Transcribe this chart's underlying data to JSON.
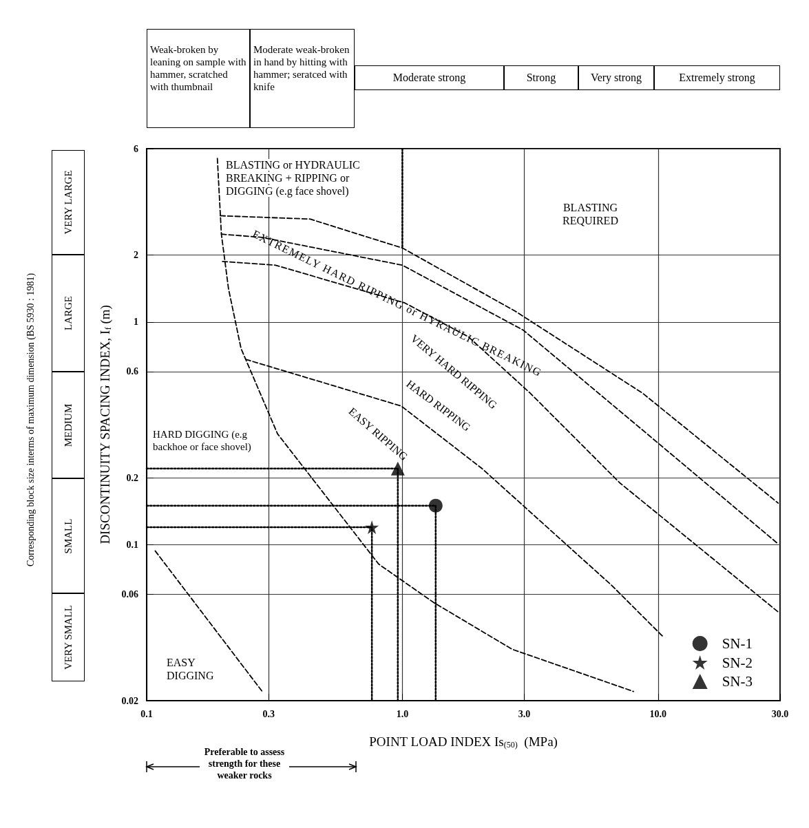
{
  "chart_data": {
    "type": "scatter",
    "xlabel": "POINT LOAD INDEX Is$_{(50)}$  (MPa)",
    "ylabel": "DISCONTINUITY SPACING INDEX, I$_{f}$ (m)",
    "xlim": [
      0.1,
      30
    ],
    "ylim": [
      0.02,
      6
    ],
    "xticks": [
      0.1,
      0.3,
      {
        "value": 1,
        "label": "1.0"
      },
      {
        "value": 3,
        "label": "3.0"
      },
      {
        "value": 10,
        "label": "10.0"
      },
      {
        "value": 30,
        "label": "30.0"
      }
    ],
    "yticks": [
      0.02,
      0.06,
      0.1,
      0.2,
      0.6,
      1,
      2,
      6
    ],
    "log": "xy",
    "grid": true,
    "legend": "bottom right",
    "annotations": [
      "Weak-broken by leaning on sample with hammer, scratched with thumbnail",
      "Moderate weak-broken in hand by hitting with hammer; seratced with knife",
      "Moderate strong",
      "Strong",
      "Very strong",
      "Extremely strong",
      "VERY LARGE",
      "LARGE",
      "MEDIUM",
      "SMALL",
      "VERY SMALL",
      "Corresponding block size interms of maximum dimension (BS 5930 : 1981)",
      "Preferable to assess strength for these weaker rocks",
      "BLASTING or HYDRAULIC BREAKING + RIPPING or DIGGING (e.g face shovel)",
      "BLASTING REQUIRED",
      "EXTREMELY HARD RIPPING or HYRAULIC BREAKING",
      "VERY HARD RIPPING",
      "HARD RIPPING",
      "EASY RIPPING",
      "HARD DIGGING (e.g backhoe or face shovel)",
      "EASY DIGGING"
    ],
    "series": [
      {
        "type": "line",
        "color": "#000000",
        "line_style": "dashed",
        "marker": "none",
        "x": [
          0.194,
          0.435,
          1.0,
          2.76,
          8.69,
          29.5
        ],
        "values": [
          3.0,
          2.9,
          2.15,
          1.12,
          0.48,
          0.154
        ]
      },
      {
        "type": "line",
        "color": "#000000",
        "line_style": "dashed",
        "marker": "none",
        "x": [
          0.196,
          0.282,
          1.0,
          2.97,
          9.06,
          29.5
        ],
        "values": [
          2.48,
          2.4,
          1.8,
          0.92,
          0.315,
          0.101
        ]
      },
      {
        "type": "line",
        "color": "#000000",
        "line_style": "dashed",
        "marker": "none",
        "x": [
          0.198,
          0.319,
          1.02,
          1.81,
          3.16,
          7.08,
          29.5
        ],
        "values": [
          1.87,
          1.8,
          1.22,
          0.86,
          0.48,
          0.19,
          0.05
        ]
      },
      {
        "type": "line",
        "color": "#000000",
        "line_style": "dashed",
        "marker": "none",
        "x": [
          0.244,
          0.305,
          0.99,
          2.05,
          6.57,
          10.4
        ],
        "values": [
          0.68,
          0.63,
          0.42,
          0.22,
          0.066,
          0.039
        ]
      },
      {
        "type": "line",
        "color": "#000000",
        "line_style": "dashed",
        "marker": "none",
        "x": [
          0.189,
          0.196,
          0.209,
          0.234,
          0.244,
          0.325,
          0.808,
          1.33,
          2.69,
          8.01
        ],
        "values": [
          5.43,
          2.48,
          1.41,
          0.76,
          0.68,
          0.315,
          0.082,
          0.055,
          0.034,
          0.022
        ]
      },
      {
        "type": "line",
        "color": "#000000",
        "line_style": "dashed",
        "marker": "none",
        "x": [
          0.108,
          0.283
        ],
        "values": [
          0.094,
          0.022
        ]
      },
      {
        "type": "line",
        "color": "#000000",
        "line_style": "dotted",
        "marker": "none",
        "x": [
          1.0,
          1.0
        ],
        "values": [
          6,
          2.15
        ]
      },
      {
        "type": "line",
        "color": "#000000",
        "line_style": "dotted",
        "marker": "none",
        "x": [
          0.1,
          1.35,
          1.35
        ],
        "values": [
          0.15,
          0.15,
          0.02
        ]
      },
      {
        "type": "line",
        "color": "#000000",
        "line_style": "dotted",
        "marker": "none",
        "x": [
          0.1,
          0.76,
          0.76
        ],
        "values": [
          0.12,
          0.12,
          0.02
        ]
      },
      {
        "type": "line",
        "color": "#000000",
        "line_style": "dotted",
        "marker": "none",
        "x": [
          0.1,
          0.96,
          0.96
        ],
        "values": [
          0.22,
          0.22,
          0.02
        ]
      },
      {
        "name": "SN-1",
        "color": "#000000",
        "marker": "circle",
        "x": [
          1.35
        ],
        "values": [
          0.15
        ]
      },
      {
        "name": "SN-2",
        "color": "#000000",
        "marker": "star",
        "x": [
          0.76
        ],
        "values": [
          0.12
        ]
      },
      {
        "name": "SN-3",
        "color": "#000000",
        "marker": "triangle",
        "x": [
          0.96
        ],
        "values": [
          0.22
        ]
      }
    ]
  }
}
